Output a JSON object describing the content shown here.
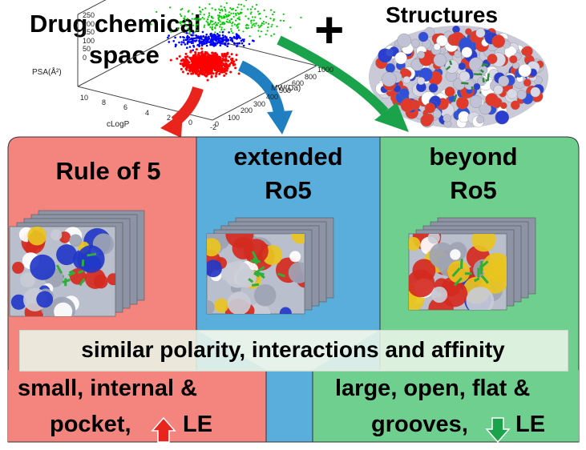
{
  "top": {
    "title_line1": "Drug chemical",
    "title_line2": "space",
    "plus": "+",
    "structures_label": "Structures"
  },
  "plot3d": {
    "z_axis_label": "PSA(Å²)",
    "z_ticks": [
      "250",
      "200",
      "150",
      "100",
      "50",
      "0"
    ],
    "x_axis_label": "cLogP",
    "x_ticks": [
      "10",
      "8",
      "6",
      "4",
      "2",
      "0",
      "-2"
    ],
    "y_axis_label": "MW(Da)",
    "y_ticks": [
      "0",
      "100",
      "200",
      "300",
      "400",
      "500",
      "600",
      "800",
      "1000"
    ]
  },
  "panels": {
    "ro5_title": "Rule of 5",
    "ext_title_line1": "extended",
    "ext_title_line2": "Ro5",
    "bro5_title_line1": "beyond",
    "bro5_title_line2": "Ro5"
  },
  "banner": {
    "text": "similar polarity, interactions and affinity"
  },
  "bottom": {
    "left_line1": "small, internal &",
    "left_line2_a": "pocket,",
    "left_line2_b": "LE",
    "right_line1": "large, open, flat &",
    "right_line2_a": "grooves,",
    "right_line2_b": "LE"
  },
  "colors": {
    "ro5_panel": "#f4857e",
    "ext_panel": "#5aaedc",
    "bro5_panel": "#6fcf8f",
    "arrow_red": "#e8241c",
    "arrow_blue": "#1f7fc0",
    "arrow_green": "#1aa34a",
    "points_red": "#ff0000",
    "points_blue": "#0000ff",
    "points_green": "#00cc00"
  },
  "icons": {
    "up_arrow": "red-up-arrow-icon",
    "down_arrow": "green-down-arrow-icon"
  }
}
